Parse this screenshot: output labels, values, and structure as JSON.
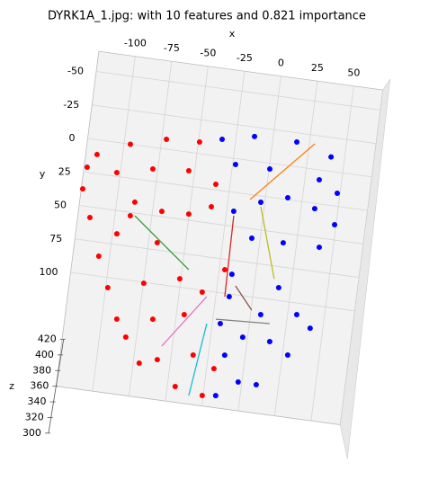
{
  "chart_data": {
    "type": "scatter3d",
    "title": "DYRK1A_1.jpg: with 10 features and 0.821 importance",
    "xlabel": "x",
    "ylabel": "y",
    "zlabel": "z",
    "xlim": [
      -125,
      70
    ],
    "ylim": [
      -65,
      185
    ],
    "zlim": [
      300,
      420
    ],
    "xticks": [
      -100,
      -75,
      -50,
      -25,
      0,
      25,
      50
    ],
    "yticks": [
      -50,
      -25,
      0,
      25,
      50,
      75,
      100
    ],
    "zticks": [
      300,
      320,
      340,
      360,
      380,
      400,
      420
    ],
    "grid": true,
    "series": [
      {
        "color": "#ff0000",
        "x": [
          -117.3,
          -95.7,
          -71.8,
          -49.2,
          -122.9,
          -124,
          -102.4,
          -78.4,
          -54,
          -87.7,
          -68.7,
          -50.3,
          -35.7,
          -116.7,
          -107.4,
          -97.1,
          -69.1,
          -98.6,
          -74.7,
          -50.8,
          -34.5,
          -89.8,
          -65.5,
          -44.7,
          -82.2,
          -59,
          -44.6,
          -25.6,
          -35.2,
          -20,
          -70.9,
          -21.2,
          -89.6,
          -34.6
        ],
        "y": [
          10.9,
          0,
          -7.2,
          -8.5,
          21.2,
          37.5,
          22.2,
          15.9,
          13.7,
          42.1,
          46.1,
          45.4,
          37.8,
          57.8,
          85.3,
          67.1,
          69.6,
          107.5,
          100.7,
          93.8,
          101.4,
          129.7,
          126.2,
          119.7,
          142,
          155.4,
          173.4,
          177.3,
          148.5,
          156.4,
          159.8,
          82.7,
          52.5,
          20.9
        ]
      },
      {
        "color": "#0000ff",
        "x": [
          -34.2,
          -12.6,
          16.4,
          40.8,
          -23,
          0.5,
          34.8,
          48.1,
          -20.2,
          -2.7,
          15.1,
          34.2,
          49,
          -5.7,
          15.9,
          40.6,
          -16,
          6.9,
          31.2,
          -15.9,
          -3.3,
          15.3,
          28.6,
          -13.9,
          -2.5,
          9.9,
          -19.6,
          41.4,
          16.7,
          -16.5
        ],
        "y": [
          -12.7,
          -18,
          -18.2,
          -10.6,
          4.4,
          4.3,
          7.3,
          15.4,
          38.9,
          29.6,
          23.6,
          28.9,
          38.7,
          56.9,
          57.1,
          56.8,
          85.3,
          112.1,
          108.5,
          102,
          130.4,
          131,
          139.1,
          145.4,
          163.8,
          164,
          122.7,
          117.1,
          90.5,
          176
        ]
      }
    ],
    "segments": [
      {
        "color": "#ff7f0e",
        "x": [
          -10.2,
          28.7
        ],
        "y": [
          28.7,
          -18.7
        ]
      },
      {
        "color": "#2ca02c",
        "x": [
          -86.5,
          -45.5
        ],
        "y": [
          52.1,
          86.3
        ]
      },
      {
        "color": "#d62728",
        "x": [
          -19.8,
          -18.9
        ],
        "y": [
          42.2,
          102.5
        ]
      },
      {
        "color": "#bcbd22",
        "x": [
          -2.3,
          12.9
        ],
        "y": [
          32.9,
          84.4
        ]
      },
      {
        "color": "#8c564b",
        "x": [
          -12.6,
          0.4
        ],
        "y": [
          93.5,
          109.7
        ]
      },
      {
        "color": "#e377c2",
        "x": [
          -31.1,
          -57.2
        ],
        "y": [
          104.3,
          145.1
        ]
      },
      {
        "color": "#17becf",
        "x": [
          -28.7,
          -34.7
        ],
        "y": [
          124.1,
          178.7
        ]
      },
      {
        "color": "#7f7f7f",
        "x": [
          -23,
          13.7
        ],
        "y": [
          119.9,
          117.8
        ]
      }
    ]
  }
}
